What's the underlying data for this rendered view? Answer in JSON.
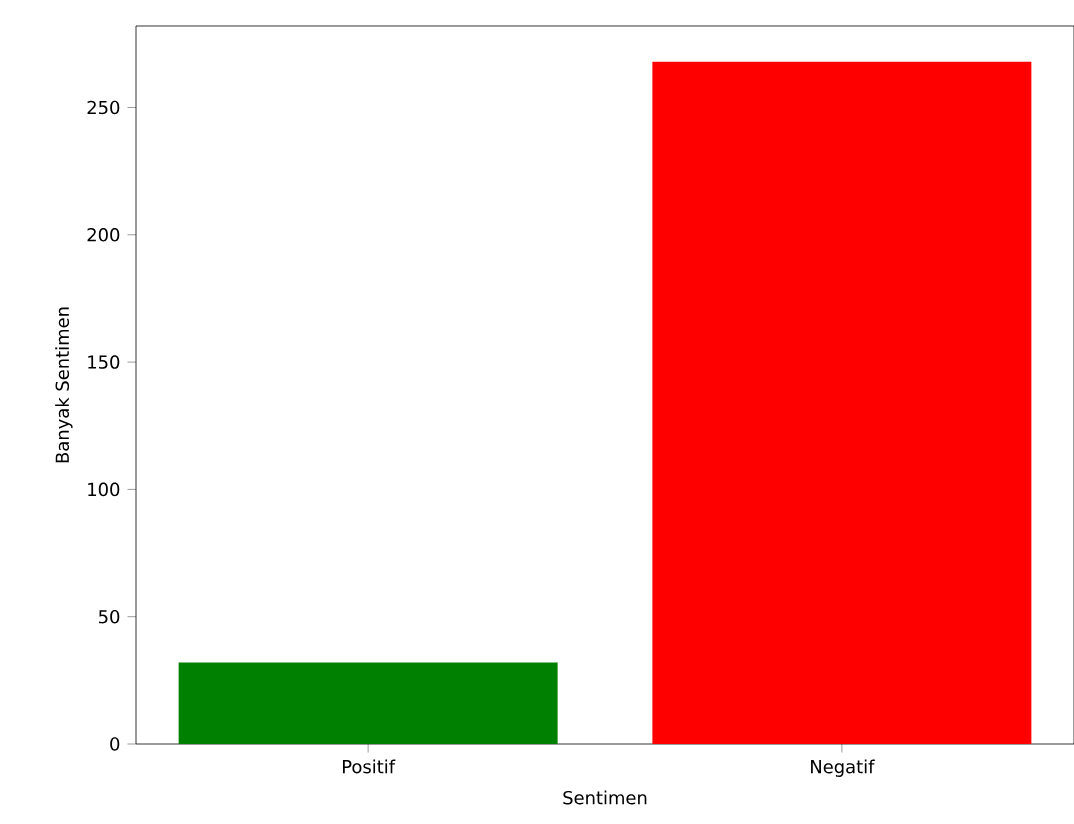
{
  "chart_data": {
    "type": "bar",
    "xlabel": "Sentimen",
    "ylabel": "Banyak Sentimen",
    "categories": [
      "Positif",
      "Negatif"
    ],
    "values": [
      32,
      268
    ],
    "colors": [
      "#008000",
      "#ff0000"
    ],
    "ylim": [
      0,
      282
    ],
    "yticks": [
      0,
      50,
      100,
      150,
      200,
      250
    ],
    "grid": false
  }
}
